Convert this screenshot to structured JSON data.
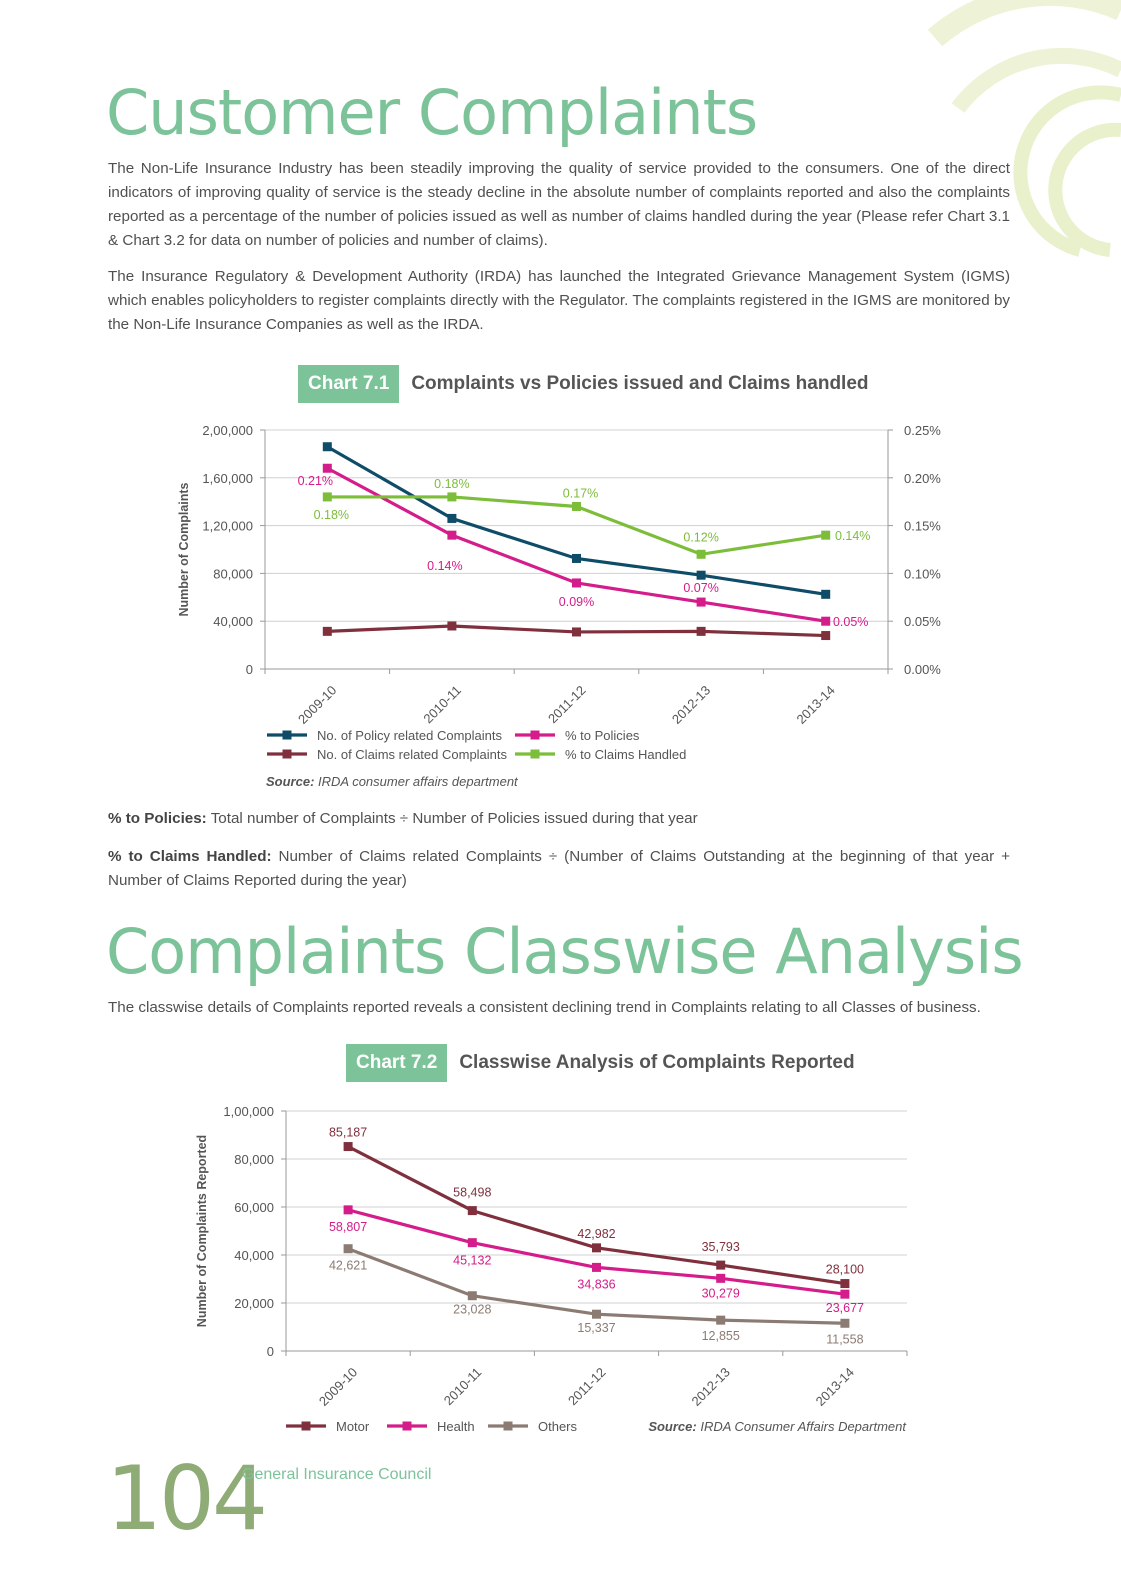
{
  "section1": {
    "title": "Customer Complaints",
    "para1": "The Non-Life Insurance Industry has been steadily improving the quality of service provided to the consumers. One of the direct indicators of improving quality of service is the steady decline in the absolute number of complaints reported and also the complaints reported as a percentage of the number of policies issued as well as number of claims handled during the year (Please refer Chart 3.1 & Chart 3.2 for data on number of policies and number of claims).",
    "para2": "The Insurance Regulatory & Development Authority (IRDA) has launched the Integrated Grievance Management System (IGMS) which enables policyholders to register complaints directly with the Regulator. The complaints registered in the IGMS are monitored by the Non-Life Insurance Companies as well as the IRDA."
  },
  "chart1_header": {
    "tag": "Chart 7.1",
    "name": "Complaints vs Policies issued and Claims handled"
  },
  "chart1_source": {
    "label": "Source:",
    "text": "IRDA consumer affairs department"
  },
  "definitions": [
    {
      "term": "% to Policies:",
      "text": "Total number of Complaints ÷ Number of Policies issued during that year"
    },
    {
      "term": "% to Claims Handled:",
      "text": "Number of Claims related Complaints ÷ (Number of Claims Outstanding at the beginning of that year + Number of Claims Reported during the year)"
    }
  ],
  "section2": {
    "title": "Complaints Classwise Analysis",
    "para1": "The classwise details of Complaints reported reveals a consistent declining trend in Complaints relating to all Classes of business."
  },
  "chart2_header": {
    "tag": "Chart 7.2",
    "name": "Classwise Analysis of Complaints Reported"
  },
  "chart2_source": {
    "label": "Source:",
    "text": "IRDA Consumer Affairs Department"
  },
  "footer": {
    "page_number": "104",
    "org": "General Insurance Council"
  },
  "colors": {
    "accent": "#7cc39a",
    "navy": "#0f4c68",
    "maroon": "#80303d",
    "pink": "#d41c8a",
    "green": "#7cbd3a",
    "taupe": "#8c7b73"
  },
  "chart_data": [
    {
      "type": "line",
      "title": "Complaints vs Policies issued and Claims handled",
      "categories": [
        "2009-10",
        "2010-11",
        "2011-12",
        "2012-13",
        "2013-14"
      ],
      "ylabel": "Number of Complaints",
      "ylim": [
        0,
        200000
      ],
      "yticks": [
        "2,00,000",
        "1,60,000",
        "1,20,000",
        "80,000",
        "40,000",
        "0"
      ],
      "y2lim": [
        0,
        0.25
      ],
      "y2ticks": [
        "0.25%",
        "0.20%",
        "0.15%",
        "0.10%",
        "0.05%",
        "0.00%"
      ],
      "grid": true,
      "legend_position": "bottom",
      "series": [
        {
          "name": "No. of Policy related Complaints",
          "axis": "left",
          "color": "#0f4c68",
          "values": [
            186000,
            126000,
            92500,
            78500,
            62500
          ]
        },
        {
          "name": "No. of Claims related Complaints",
          "axis": "left",
          "color": "#80303d",
          "values": [
            31500,
            36000,
            31000,
            31500,
            28000
          ]
        },
        {
          "name": "% to Policies",
          "axis": "right",
          "color": "#d41c8a",
          "values": [
            0.21,
            0.14,
            0.09,
            0.07,
            0.05
          ],
          "labels": [
            "0.21%",
            "0.14%",
            "0.09%",
            "0.07%",
            "0.05%"
          ]
        },
        {
          "name": "% to Claims Handled",
          "axis": "right",
          "color": "#7cbd3a",
          "values": [
            0.18,
            0.18,
            0.17,
            0.12,
            0.14
          ],
          "labels": [
            "0.18%",
            "0.18%",
            "0.17%",
            "0.12%",
            "0.14%"
          ]
        }
      ]
    },
    {
      "type": "line",
      "title": "Classwise Analysis of Complaints Reported",
      "categories": [
        "2009-10",
        "2010-11",
        "2011-12",
        "2012-13",
        "2013-14"
      ],
      "ylabel": "Number of Complaints Reported",
      "ylim": [
        0,
        100000
      ],
      "yticks": [
        "1,00,000",
        "80,000",
        "60,000",
        "40,000",
        "20,000",
        "0"
      ],
      "grid": true,
      "legend_position": "bottom",
      "series": [
        {
          "name": "Motor",
          "color": "#80303d",
          "values": [
            85187,
            58498,
            42982,
            35793,
            28100
          ],
          "labels": [
            "85,187",
            "58,498",
            "42,982",
            "35,793",
            "28,100"
          ]
        },
        {
          "name": "Health",
          "color": "#d41c8a",
          "values": [
            58807,
            45132,
            34836,
            30279,
            23677
          ],
          "labels": [
            "58,807",
            "45,132",
            "34,836",
            "30,279",
            "23,677"
          ]
        },
        {
          "name": "Others",
          "color": "#8c7b73",
          "values": [
            42621,
            23028,
            15337,
            12855,
            11558
          ],
          "labels": [
            "42,621",
            "23,028",
            "15,337",
            "12,855",
            "11,558"
          ]
        }
      ]
    }
  ]
}
